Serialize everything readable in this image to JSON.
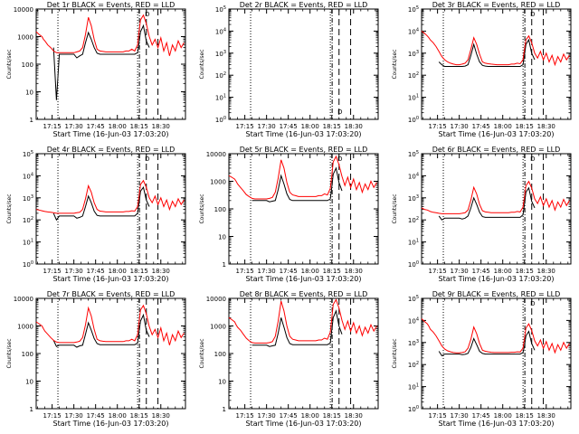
{
  "chart_data": {
    "type": "line",
    "x_tick_labels": [
      "17:15",
      "17:30",
      "17:45",
      "18:00",
      "18:15",
      "18:30"
    ],
    "x_tick_minutes": [
      15,
      30,
      45,
      60,
      75,
      90
    ],
    "xrange_minutes": [
      4,
      107
    ],
    "xlabel": "Start Time (16-Jun-03 17:03:20)",
    "ylabel": "Counts/sec",
    "legend": {
      "black": "Events",
      "red": "LLD"
    },
    "event_markers_minutes": {
      "dotted": [
        19,
        74
      ],
      "dashdot": [
        74
      ],
      "dashed": [
        80,
        88
      ]
    },
    "series_x_minutes": [
      4,
      6,
      8,
      9,
      10,
      12,
      14,
      16,
      18,
      20,
      22,
      24,
      26,
      28,
      30,
      32,
      34,
      36,
      38,
      40,
      42,
      44,
      46,
      48,
      50,
      52,
      54,
      56,
      58,
      60,
      62,
      64,
      66,
      68,
      70,
      72,
      74,
      75,
      76,
      78,
      80,
      82,
      84,
      86,
      88,
      90,
      92,
      94,
      96,
      98,
      100,
      102,
      104,
      106
    ],
    "panels": [
      {
        "title": "Det 1r BLACK = Events, RED = LLD",
        "ylim_exp": [
          0,
          4
        ],
        "ylabel_style": "plain",
        "ytick_labels": [
          "1",
          "10",
          "100",
          "1000",
          "10000"
        ],
        "black": [
          null,
          null,
          null,
          null,
          null,
          null,
          null,
          400,
          5,
          230,
          230,
          230,
          230,
          230,
          230,
          170,
          200,
          230,
          600,
          1400,
          800,
          400,
          250,
          230,
          230,
          230,
          230,
          230,
          230,
          230,
          230,
          230,
          230,
          230,
          230,
          230,
          260,
          600,
          1500,
          2500,
          700,
          400,
          null,
          null,
          null,
          null,
          null,
          null,
          null,
          null,
          null,
          null,
          null,
          null
        ],
        "red": [
          1500,
          1200,
          1000,
          800,
          700,
          500,
          400,
          300,
          260,
          260,
          260,
          260,
          260,
          260,
          260,
          280,
          300,
          400,
          1200,
          5000,
          2500,
          800,
          350,
          300,
          290,
          280,
          280,
          280,
          280,
          280,
          280,
          280,
          300,
          300,
          350,
          300,
          500,
          1500,
          4000,
          6000,
          3000,
          1000,
          500,
          800,
          400,
          900,
          300,
          600,
          200,
          500,
          300,
          700,
          400,
          600
        ],
        "upper_note": "D",
        "lower_note": ""
      },
      {
        "title": "Det 2r BLACK = Events, RED = LLD",
        "ylim_exp": [
          0,
          5
        ],
        "ylabel_style": "exp",
        "ytick_labels": [
          "10^0",
          "10^1",
          "10^2",
          "10^3",
          "10^4",
          "10^5"
        ],
        "black": [],
        "red": [],
        "upper_note": "",
        "lower_note": "D"
      },
      {
        "title": "Det 3r BLACK = Events, RED = LLD",
        "ylim_exp": [
          0,
          5
        ],
        "ylabel_style": "exp",
        "ytick_labels": [
          "10^0",
          "10^1",
          "10^2",
          "10^3",
          "10^4",
          "10^5"
        ],
        "black": [
          null,
          null,
          null,
          null,
          null,
          null,
          null,
          400,
          300,
          250,
          250,
          250,
          250,
          250,
          250,
          250,
          260,
          300,
          800,
          2500,
          900,
          400,
          280,
          260,
          250,
          250,
          250,
          250,
          250,
          250,
          250,
          250,
          250,
          250,
          250,
          250,
          300,
          800,
          2500,
          4000,
          1000,
          500,
          null,
          null,
          null,
          null,
          null,
          null,
          null,
          null,
          null,
          null,
          null,
          null
        ],
        "red": [
          10000,
          8000,
          6000,
          5000,
          4000,
          3000,
          2000,
          1200,
          700,
          500,
          400,
          350,
          320,
          300,
          300,
          320,
          350,
          500,
          1500,
          5000,
          2500,
          900,
          400,
          350,
          330,
          320,
          310,
          300,
          300,
          300,
          300,
          300,
          320,
          320,
          350,
          330,
          500,
          1500,
          4000,
          6000,
          3000,
          1000,
          600,
          1200,
          500,
          1000,
          400,
          800,
          300,
          700,
          400,
          900,
          500,
          800
        ],
        "upper_note": "D",
        "lower_note": ""
      },
      {
        "title": "Det 4r BLACK = Events, RED = LLD",
        "ylim_exp": [
          0,
          5
        ],
        "ylabel_style": "exp",
        "ytick_labels": [
          "10^0",
          "10^1",
          "10^2",
          "10^3",
          "10^4",
          "10^5"
        ],
        "black": [
          null,
          null,
          null,
          null,
          null,
          null,
          null,
          200,
          100,
          150,
          150,
          150,
          150,
          150,
          150,
          120,
          130,
          150,
          400,
          1200,
          600,
          250,
          160,
          150,
          150,
          150,
          150,
          150,
          150,
          150,
          150,
          150,
          150,
          150,
          150,
          150,
          200,
          600,
          2000,
          3000,
          800,
          400,
          null,
          null,
          null,
          null,
          null,
          null,
          null,
          null,
          null,
          null,
          null,
          null
        ],
        "red": [
          300,
          280,
          260,
          250,
          240,
          230,
          220,
          210,
          200,
          200,
          200,
          200,
          200,
          200,
          200,
          210,
          220,
          300,
          900,
          3500,
          1800,
          600,
          300,
          250,
          240,
          230,
          230,
          230,
          230,
          230,
          230,
          230,
          240,
          240,
          260,
          250,
          400,
          1200,
          4000,
          6000,
          3000,
          1000,
          600,
          1200,
          500,
          1000,
          400,
          800,
          300,
          700,
          400,
          900,
          500,
          800
        ],
        "upper_note": "D",
        "lower_note": ""
      },
      {
        "title": "Det 5r BLACK = Events, RED = LLD",
        "ylim_exp": [
          0,
          4
        ],
        "ylabel_style": "plain",
        "ytick_labels": [
          "1",
          "10",
          "100",
          "1000",
          "10000"
        ],
        "black": [
          null,
          null,
          null,
          null,
          null,
          null,
          null,
          null,
          null,
          200,
          200,
          200,
          200,
          200,
          200,
          180,
          190,
          200,
          500,
          1600,
          800,
          350,
          220,
          200,
          200,
          200,
          200,
          200,
          200,
          200,
          200,
          200,
          200,
          200,
          200,
          200,
          230,
          600,
          1800,
          3000,
          900,
          450,
          null,
          null,
          null,
          null,
          null,
          null,
          null,
          null,
          null,
          null,
          null,
          null
        ],
        "red": [
          1600,
          1400,
          1200,
          1000,
          800,
          600,
          450,
          330,
          280,
          240,
          230,
          230,
          230,
          230,
          230,
          240,
          260,
          400,
          1300,
          6000,
          3000,
          900,
          400,
          320,
          300,
          280,
          280,
          280,
          280,
          280,
          280,
          280,
          300,
          300,
          350,
          320,
          550,
          1500,
          5000,
          8000,
          4000,
          1500,
          700,
          1400,
          600,
          1200,
          500,
          900,
          400,
          800,
          500,
          1000,
          600,
          900
        ],
        "upper_note": "D",
        "lower_note": ""
      },
      {
        "title": "Det 6r BLACK = Events, RED = LLD",
        "ylim_exp": [
          0,
          5
        ],
        "ylabel_style": "exp",
        "ytick_labels": [
          "10^0",
          "10^1",
          "10^2",
          "10^3",
          "10^4",
          "10^5"
        ],
        "black": [
          null,
          null,
          null,
          null,
          null,
          null,
          null,
          150,
          100,
          120,
          120,
          120,
          120,
          120,
          120,
          110,
          120,
          150,
          350,
          1000,
          500,
          220,
          140,
          130,
          130,
          130,
          130,
          130,
          130,
          130,
          130,
          130,
          130,
          130,
          130,
          130,
          170,
          500,
          1800,
          2800,
          700,
          350,
          null,
          null,
          null,
          null,
          null,
          null,
          null,
          null,
          null,
          null,
          null,
          null
        ],
        "red": [
          350,
          300,
          280,
          260,
          240,
          220,
          210,
          200,
          190,
          190,
          190,
          190,
          190,
          190,
          190,
          200,
          210,
          280,
          800,
          3000,
          1500,
          500,
          260,
          230,
          220,
          210,
          210,
          210,
          210,
          210,
          210,
          210,
          220,
          220,
          240,
          230,
          380,
          1100,
          3500,
          5500,
          2800,
          900,
          550,
          1100,
          450,
          900,
          380,
          750,
          280,
          650,
          380,
          850,
          450,
          750
        ],
        "upper_note": "D",
        "lower_note": ""
      },
      {
        "title": "Det 7r BLACK = Events, RED = LLD",
        "ylim_exp": [
          0,
          4
        ],
        "ylabel_style": "plain",
        "ytick_labels": [
          "1",
          "10",
          "100",
          "1000",
          "10000"
        ],
        "black": [
          null,
          null,
          null,
          null,
          null,
          null,
          null,
          300,
          180,
          200,
          200,
          200,
          200,
          200,
          200,
          170,
          190,
          200,
          500,
          1300,
          700,
          350,
          230,
          210,
          210,
          210,
          210,
          210,
          210,
          210,
          210,
          210,
          210,
          210,
          210,
          210,
          240,
          600,
          1500,
          2500,
          700,
          400,
          null,
          null,
          null,
          null,
          null,
          null,
          null,
          null,
          null,
          null,
          null,
          null
        ],
        "red": [
          1400,
          1200,
          1000,
          800,
          650,
          500,
          380,
          300,
          260,
          250,
          250,
          250,
          250,
          250,
          250,
          260,
          280,
          380,
          1100,
          4500,
          2300,
          750,
          330,
          290,
          280,
          270,
          270,
          270,
          270,
          270,
          270,
          270,
          290,
          290,
          330,
          290,
          480,
          1400,
          3800,
          5500,
          2800,
          950,
          480,
          750,
          380,
          850,
          290,
          550,
          200,
          480,
          290,
          650,
          380,
          550
        ],
        "upper_note": "",
        "lower_note": ""
      },
      {
        "title": "Det 8r BLACK = Events, RED = LLD",
        "ylim_exp": [
          0,
          4
        ],
        "ylabel_style": "plain",
        "ytick_labels": [
          "1",
          "10",
          "100",
          "1000",
          "10000"
        ],
        "black": [
          null,
          null,
          null,
          null,
          null,
          null,
          null,
          null,
          null,
          200,
          200,
          200,
          200,
          200,
          200,
          180,
          190,
          200,
          550,
          2000,
          900,
          380,
          230,
          210,
          210,
          210,
          210,
          210,
          210,
          210,
          210,
          210,
          210,
          210,
          210,
          210,
          240,
          700,
          2000,
          3500,
          1000,
          500,
          null,
          null,
          null,
          null,
          null,
          null,
          null,
          null,
          null,
          null,
          null,
          null
        ],
        "red": [
          2000,
          1700,
          1400,
          1100,
          900,
          700,
          500,
          360,
          290,
          250,
          240,
          240,
          240,
          240,
          240,
          250,
          270,
          420,
          1500,
          8000,
          3500,
          1000,
          420,
          330,
          310,
          290,
          290,
          290,
          290,
          290,
          290,
          290,
          310,
          310,
          360,
          330,
          600,
          1800,
          6000,
          9000,
          4500,
          1600,
          750,
          1500,
          650,
          1300,
          550,
          1000,
          450,
          900,
          550,
          1100,
          650,
          1000
        ],
        "upper_note": "",
        "lower_note": ""
      },
      {
        "title": "Det 9r BLACK = Events, RED = LLD",
        "ylim_exp": [
          0,
          5
        ],
        "ylabel_style": "exp",
        "ytick_labels": [
          "10^0",
          "10^1",
          "10^2",
          "10^3",
          "10^4",
          "10^5"
        ],
        "black": [
          null,
          null,
          null,
          null,
          null,
          null,
          null,
          400,
          250,
          300,
          300,
          300,
          300,
          300,
          300,
          280,
          290,
          320,
          600,
          1500,
          800,
          400,
          320,
          300,
          300,
          300,
          300,
          300,
          300,
          300,
          300,
          300,
          300,
          300,
          300,
          300,
          350,
          700,
          2000,
          3200,
          900,
          450,
          null,
          null,
          null,
          null,
          null,
          null,
          null,
          null,
          null,
          null,
          null,
          null
        ],
        "red": [
          12000,
          9000,
          7000,
          5500,
          4000,
          3000,
          2000,
          1200,
          700,
          500,
          420,
          380,
          350,
          340,
          340,
          350,
          380,
          550,
          1400,
          5000,
          2500,
          900,
          450,
          400,
          380,
          360,
          350,
          350,
          350,
          350,
          350,
          350,
          360,
          360,
          380,
          370,
          550,
          1500,
          4500,
          7000,
          3500,
          1200,
          700,
          1300,
          550,
          1100,
          450,
          900,
          350,
          800,
          450,
          1000,
          550,
          900
        ],
        "upper_note": "D",
        "lower_note": ""
      }
    ]
  }
}
